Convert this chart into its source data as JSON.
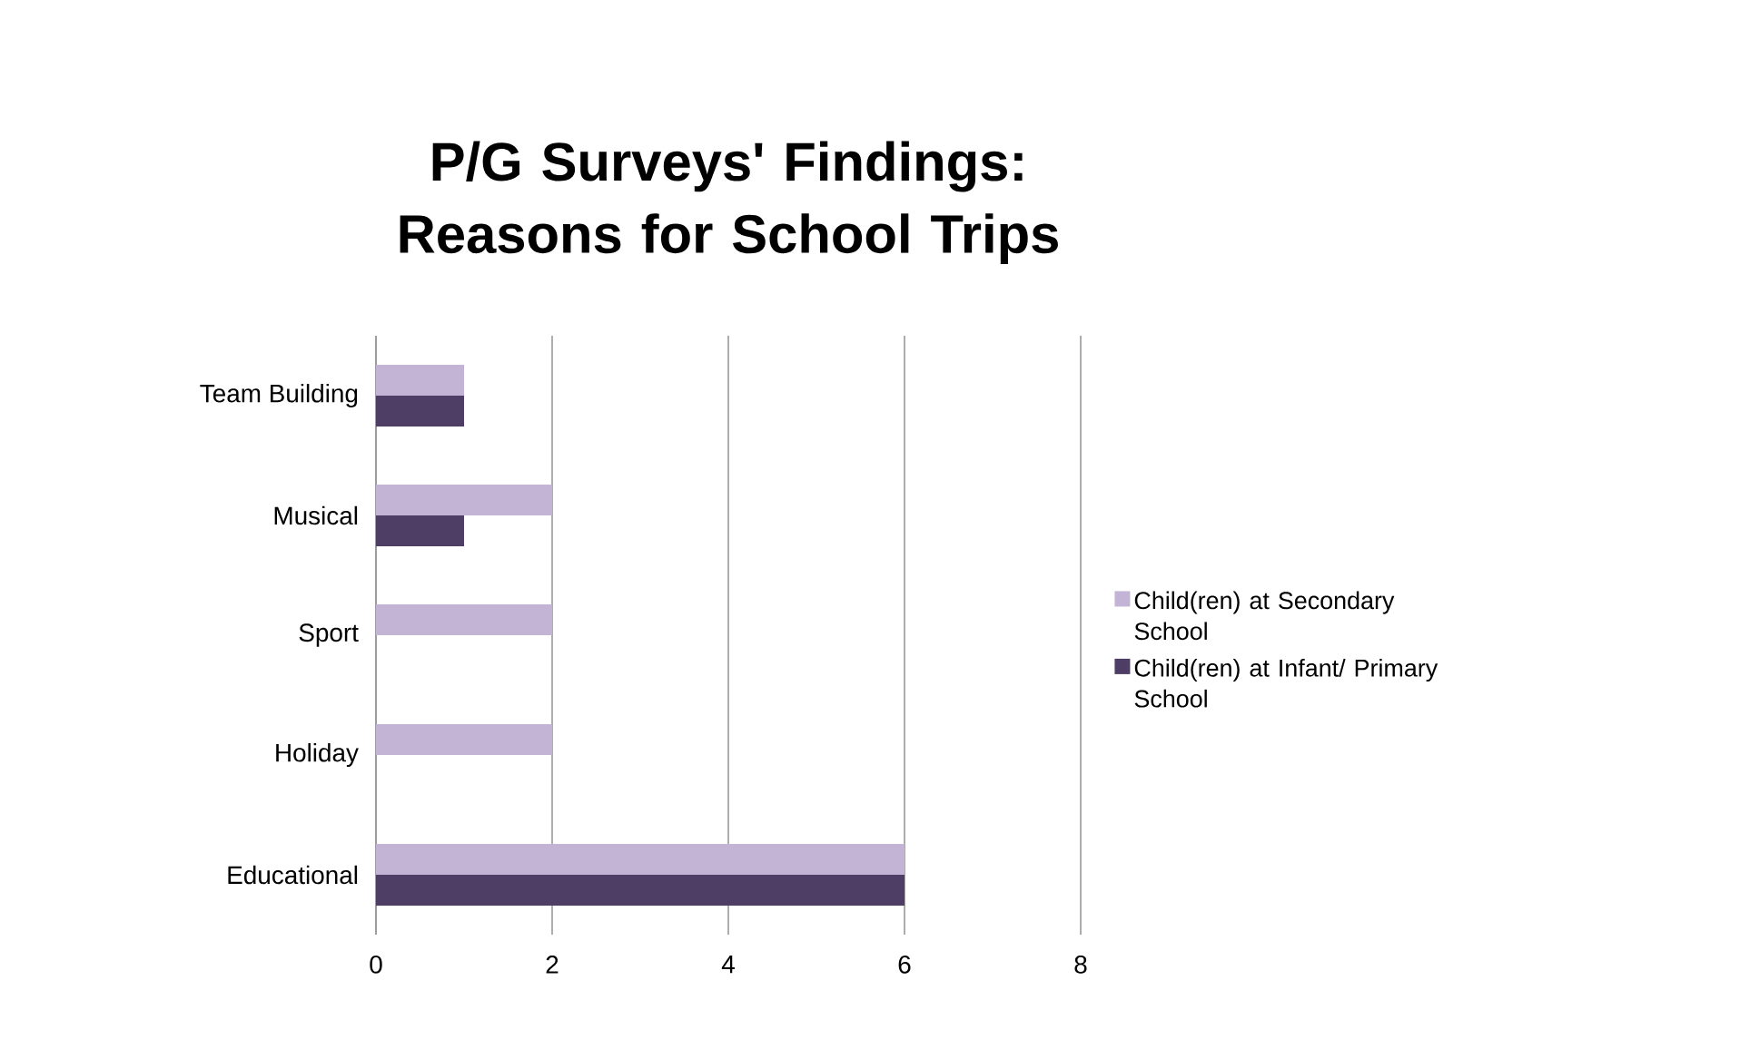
{
  "chart_data": {
    "type": "bar",
    "orientation": "horizontal",
    "title": "P/G Surveys' Findings: Reasons for School Trips",
    "categories": [
      "Team Building",
      "Musical",
      "Sport",
      "Holiday",
      "Educational"
    ],
    "series": [
      {
        "name": "Child(ren) at Secondary School",
        "color": "#c3b4d6",
        "values": [
          1,
          2,
          2,
          2,
          6
        ]
      },
      {
        "name": "Child(ren) at Infant/ Primary School",
        "color": "#4e3d64",
        "values": [
          1,
          1,
          0,
          0,
          6
        ]
      }
    ],
    "xlim": [
      0,
      8
    ],
    "xticks": [
      0,
      2,
      4,
      6,
      8
    ],
    "grid": "x",
    "legend": "right"
  }
}
